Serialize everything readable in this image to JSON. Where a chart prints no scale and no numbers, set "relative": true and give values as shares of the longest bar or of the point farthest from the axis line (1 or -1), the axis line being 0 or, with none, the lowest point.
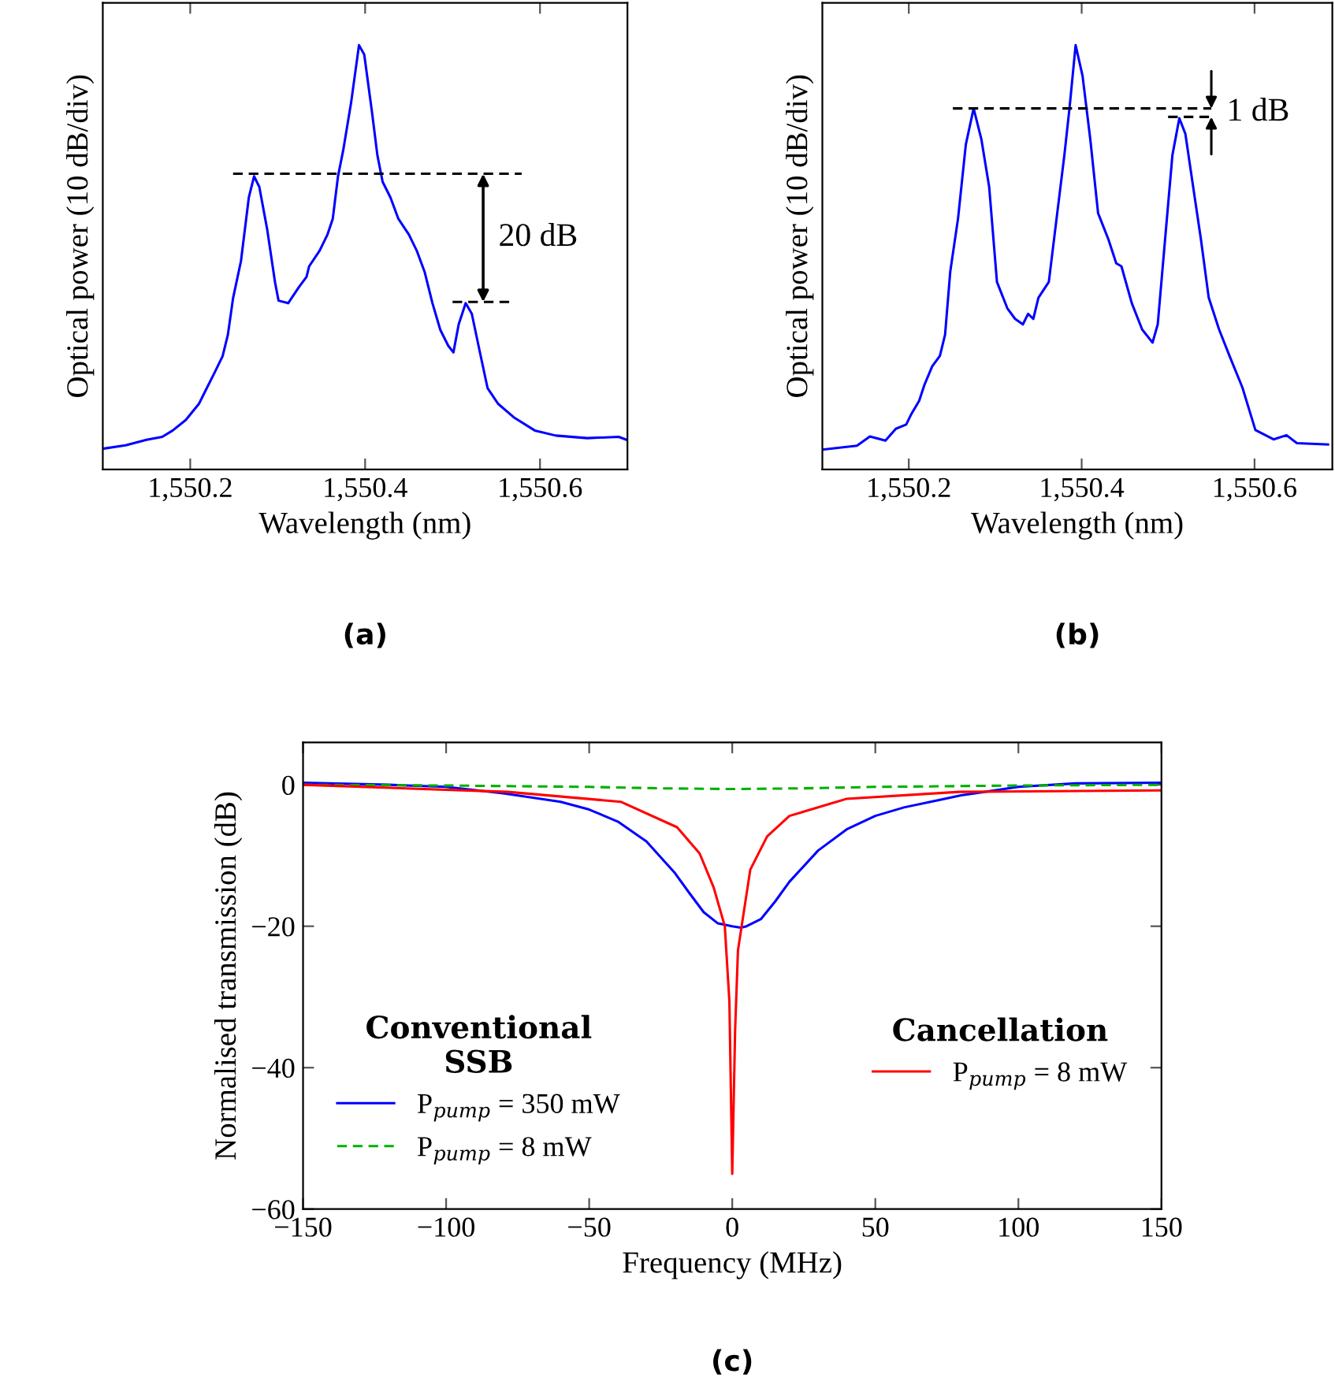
{
  "chart_data": [
    {
      "type": "line",
      "xlabel": "Wavelength (nm)",
      "ylabel": "Optical power (10 dB/div)",
      "relative": true,
      "tick_labels": "x",
      "xlim": [
        1550.1,
        1550.7
      ],
      "xticks": [
        {
          "value": 1550.2,
          "label": "1,550.2"
        },
        {
          "value": 1550.4,
          "label": "1,550.4"
        },
        {
          "value": 1550.6,
          "label": "1,550.6"
        }
      ],
      "series": [
        {
          "color": "#0000ff",
          "x": [
            1550.1,
            1550.126,
            1550.15,
            1550.168,
            1550.18,
            1550.195,
            1550.21,
            1550.219,
            1550.228,
            1550.237,
            1550.243,
            1550.249,
            1550.258,
            1550.267,
            1550.273,
            1550.279,
            1550.288,
            1550.297,
            1550.301,
            1550.312,
            1550.324,
            1550.333,
            1550.336,
            1550.348,
            1550.357,
            1550.363,
            1550.369,
            1550.375,
            1550.384,
            1550.393,
            1550.399,
            1550.408,
            1550.414,
            1550.42,
            1550.429,
            1550.438,
            1550.45,
            1550.459,
            1550.468,
            1550.477,
            1550.486,
            1550.495,
            1550.501,
            1550.507,
            1550.515,
            1550.522,
            1550.531,
            1550.54,
            1550.552,
            1550.57,
            1550.594,
            1550.618,
            1550.654,
            1550.69,
            1550.699
          ],
          "values": [
            0.049,
            0.057,
            0.07,
            0.077,
            0.092,
            0.117,
            0.155,
            0.192,
            0.229,
            0.267,
            0.317,
            0.404,
            0.491,
            0.641,
            0.691,
            0.666,
            0.566,
            0.441,
            0.398,
            0.392,
            0.429,
            0.454,
            0.479,
            0.516,
            0.554,
            0.591,
            0.691,
            0.753,
            0.865,
            1.0,
            0.978,
            0.84,
            0.741,
            0.678,
            0.641,
            0.591,
            0.554,
            0.516,
            0.466,
            0.392,
            0.329,
            0.292,
            0.276,
            0.342,
            0.392,
            0.367,
            0.279,
            0.192,
            0.155,
            0.123,
            0.092,
            0.08,
            0.074,
            0.077,
            0.07
          ]
        },
        {
          "color": "#000000",
          "line_style": "dashed",
          "x": [
            1550.249,
            1550.579
          ],
          "values": [
            0.697,
            0.697
          ]
        },
        {
          "color": "#000000",
          "line_style": "dashed",
          "x": [
            1550.5,
            1550.57
          ],
          "values": [
            0.395,
            0.395
          ]
        }
      ],
      "annotations": [
        "20 dB",
        "(a)"
      ]
    },
    {
      "type": "line",
      "xlabel": "Wavelength (nm)",
      "ylabel": "Optical power (10 dB/div)",
      "relative": true,
      "tick_labels": "x",
      "xlim": [
        1550.1,
        1550.69
      ],
      "xticks": [
        {
          "value": 1550.2,
          "label": "1,550.2"
        },
        {
          "value": 1550.4,
          "label": "1,550.4"
        },
        {
          "value": 1550.6,
          "label": "1,550.6"
        }
      ],
      "series": [
        {
          "color": "#0000ff",
          "x": [
            1550.1,
            1550.14,
            1550.155,
            1550.173,
            1550.185,
            1550.197,
            1550.203,
            1550.212,
            1550.218,
            1550.227,
            1550.236,
            1550.242,
            1550.248,
            1550.257,
            1550.266,
            1550.275,
            1550.284,
            1550.293,
            1550.302,
            1550.314,
            1550.323,
            1550.332,
            1550.338,
            1550.344,
            1550.35,
            1550.362,
            1550.371,
            1550.38,
            1550.386,
            1550.393,
            1550.401,
            1550.41,
            1550.419,
            1550.431,
            1550.44,
            1550.446,
            1550.458,
            1550.47,
            1550.482,
            1550.488,
            1550.497,
            1550.505,
            1550.513,
            1550.52,
            1550.529,
            1550.538,
            1550.547,
            1550.559,
            1550.571,
            1550.586,
            1550.601,
            1550.622,
            1550.637,
            1550.649,
            1550.685
          ],
          "values": [
            0.047,
            0.056,
            0.078,
            0.068,
            0.096,
            0.106,
            0.131,
            0.162,
            0.199,
            0.243,
            0.268,
            0.318,
            0.467,
            0.592,
            0.766,
            0.851,
            0.778,
            0.666,
            0.442,
            0.38,
            0.355,
            0.342,
            0.367,
            0.355,
            0.405,
            0.442,
            0.592,
            0.741,
            0.853,
            1.0,
            0.928,
            0.778,
            0.604,
            0.542,
            0.486,
            0.479,
            0.392,
            0.33,
            0.299,
            0.342,
            0.554,
            0.741,
            0.828,
            0.791,
            0.666,
            0.542,
            0.405,
            0.33,
            0.268,
            0.193,
            0.093,
            0.071,
            0.081,
            0.062,
            0.059
          ]
        },
        {
          "color": "#000000",
          "line_style": "dashed",
          "x": [
            1550.251,
            1550.55
          ],
          "values": [
            0.851,
            0.851
          ]
        },
        {
          "color": "#000000",
          "line_style": "dashed",
          "x": [
            1550.5,
            1550.55
          ],
          "values": [
            0.831,
            0.831
          ]
        }
      ],
      "annotations": [
        "1 dB",
        "(b)"
      ]
    },
    {
      "type": "line",
      "xlabel": "Frequency (MHz)",
      "ylabel": "Normalised transmission (dB)",
      "xlim": [
        -150,
        150
      ],
      "ylim": [
        -60,
        6
      ],
      "xticks": [
        {
          "value": -150,
          "label": "−150"
        },
        {
          "value": -100,
          "label": "−100"
        },
        {
          "value": -50,
          "label": "−50"
        },
        0,
        50,
        100,
        150
      ],
      "yticks": [
        {
          "value": -60,
          "label": "−60"
        },
        {
          "value": -40,
          "label": "−40"
        },
        {
          "value": -20,
          "label": "−20"
        },
        0
      ],
      "legend": "bottom",
      "legend_title": [
        "Conventional\nSSB",
        "Cancellation"
      ],
      "series": [
        {
          "name": "P$_{pump}$ = 350 mW",
          "color": "#0000ff",
          "x": [
            -150,
            -120,
            -100,
            -80,
            -60,
            -50,
            -40,
            -30,
            -20,
            -15,
            -10,
            -5,
            0,
            3,
            5,
            10,
            15,
            20,
            30,
            40,
            50,
            60,
            80,
            100,
            120,
            150
          ],
          "values": [
            0.3,
            0,
            -0.3,
            -1.2,
            -2.4,
            -3.5,
            -5.2,
            -8,
            -12.5,
            -15.3,
            -18,
            -19.6,
            -20,
            -20.2,
            -20,
            -19,
            -16.5,
            -13.7,
            -9.3,
            -6.3,
            -4.4,
            -3.2,
            -1.5,
            -0.3,
            0.2,
            0.3
          ]
        },
        {
          "name": "P$_{pump}$ = 8 mW",
          "color": "#00b000",
          "line_style": "dashed",
          "x": [
            -150,
            -100,
            -50,
            -25,
            0,
            25,
            50,
            100,
            150
          ],
          "values": [
            0,
            -0.1,
            -0.3,
            -0.5,
            -0.6,
            -0.5,
            -0.3,
            -0.1,
            0
          ]
        },
        {
          "name": "P$_{pump}$ = 8 mW",
          "color": "#ff0000",
          "x": [
            -150,
            -78.5,
            -39,
            -19.3,
            -11.4,
            -6.5,
            -2.6,
            -1,
            0,
            1,
            2,
            6.3,
            12.2,
            20,
            39.8,
            79.3,
            150
          ],
          "values": [
            0,
            -1,
            -2.4,
            -6,
            -9.7,
            -14.5,
            -20,
            -30.6,
            -55,
            -34.7,
            -23.4,
            -12,
            -7.3,
            -4.4,
            -2,
            -1,
            -0.8
          ]
        }
      ],
      "annotations": [
        "(c)"
      ]
    }
  ]
}
